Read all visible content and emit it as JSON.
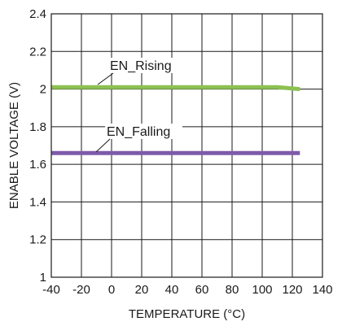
{
  "chart_data": {
    "type": "line",
    "xlabel": "TEMPERATURE (°C)",
    "ylabel": "ENABLE VOLTAGE (V)",
    "xlim": [
      -40,
      140
    ],
    "ylim": [
      1,
      2.4
    ],
    "x_ticks": [
      -40,
      -20,
      0,
      20,
      40,
      60,
      80,
      100,
      120,
      140
    ],
    "y_ticks": [
      1,
      1.2,
      1.4,
      1.6,
      1.8,
      2,
      2.2,
      2.4
    ],
    "x_tick_labels": [
      "-40",
      "-20",
      "0",
      "20",
      "40",
      "60",
      "80",
      "100",
      "120",
      "140"
    ],
    "y_tick_labels": [
      "1",
      "1.2",
      "1.4",
      "1.6",
      "1.8",
      "2",
      "2.2",
      "2.4"
    ],
    "grid": true,
    "series": [
      {
        "name": "EN_Rising",
        "color": "#8cc152",
        "x": [
          -40,
          -20,
          0,
          20,
          40,
          60,
          80,
          100,
          110,
          125
        ],
        "y": [
          2.01,
          2.01,
          2.01,
          2.01,
          2.01,
          2.01,
          2.01,
          2.01,
          2.01,
          2.0
        ]
      },
      {
        "name": "EN_Falling",
        "color": "#7e5aa9",
        "x": [
          -40,
          -20,
          0,
          20,
          40,
          60,
          80,
          100,
          125
        ],
        "y": [
          1.66,
          1.66,
          1.66,
          1.66,
          1.66,
          1.66,
          1.66,
          1.66,
          1.66
        ]
      }
    ]
  }
}
